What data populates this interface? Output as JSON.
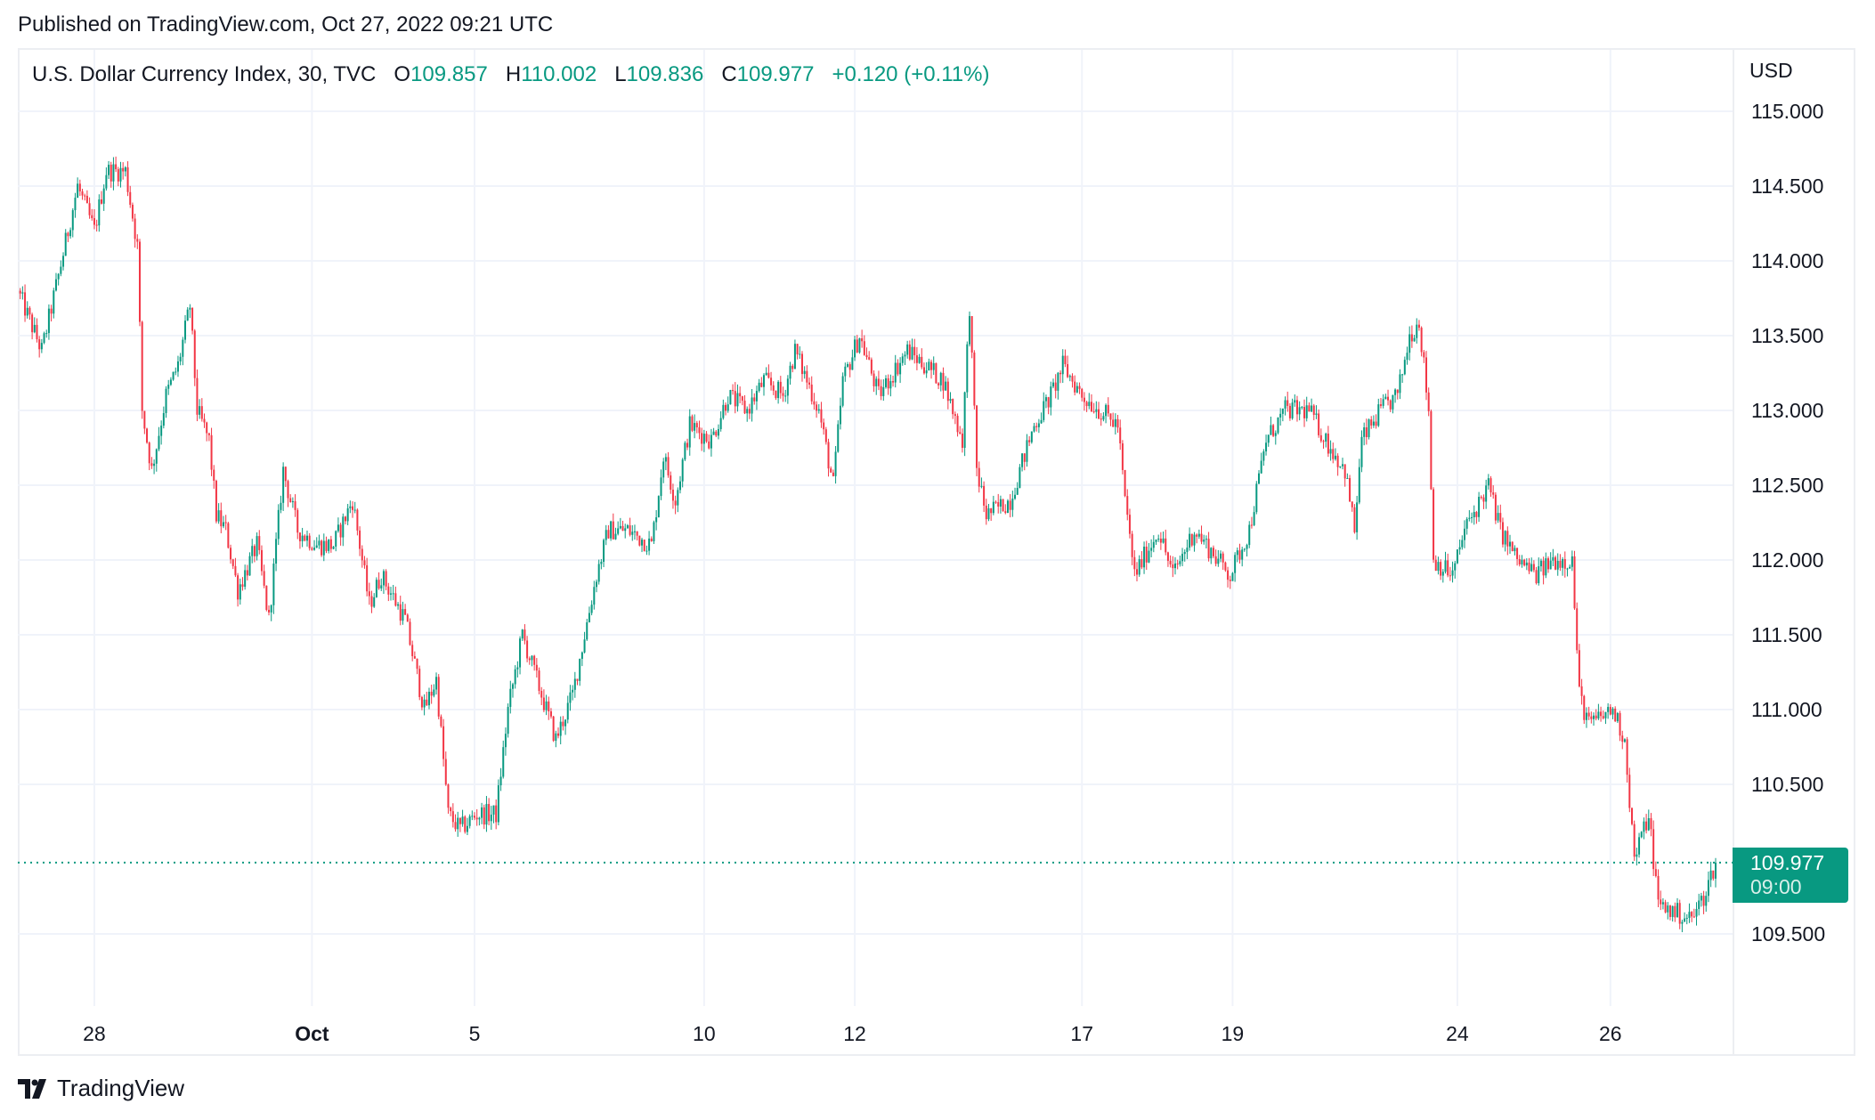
{
  "published": "Published on TradingView.com, Oct 27, 2022 09:21 UTC",
  "legend": {
    "symbol": "U.S. Dollar Currency Index, 30, TVC",
    "o_label": "O",
    "o": "109.857",
    "h_label": "H",
    "h": "110.002",
    "l_label": "L",
    "l": "109.836",
    "c_label": "C",
    "c": "109.977",
    "change": "+0.120 (+0.11%)"
  },
  "currency": "USD",
  "last_price": {
    "value": "109.977",
    "time": "09:00"
  },
  "brand": "TradingView",
  "colors": {
    "up": "#089981",
    "down": "#F23645",
    "grid": "#f0f3fa"
  },
  "chart_data": {
    "type": "candlestick",
    "title": "U.S. Dollar Currency Index, 30, TVC",
    "ylabel": "USD",
    "ylim": [
      108.8,
      115.2
    ],
    "yticks": [
      "115.000",
      "114.500",
      "114.000",
      "113.500",
      "113.000",
      "112.500",
      "112.000",
      "111.500",
      "111.000",
      "110.500",
      "109.500"
    ],
    "xticks": [
      {
        "label": "28",
        "bar": 32,
        "bold": false
      },
      {
        "label": "Oct",
        "bar": 123,
        "bold": true
      },
      {
        "label": "5",
        "bar": 191,
        "bold": false
      },
      {
        "label": "10",
        "bar": 287,
        "bold": false
      },
      {
        "label": "12",
        "bar": 350,
        "bold": false
      },
      {
        "label": "17",
        "bar": 445,
        "bold": false
      },
      {
        "label": "19",
        "bar": 508,
        "bold": false
      },
      {
        "label": "24",
        "bar": 602,
        "bold": false
      },
      {
        "label": "26",
        "bar": 666,
        "bold": false
      }
    ],
    "bars": 710,
    "approx_close_path": [
      [
        0,
        113.8
      ],
      [
        10,
        113.4
      ],
      [
        17,
        113.9
      ],
      [
        25,
        114.5
      ],
      [
        32,
        114.2
      ],
      [
        37,
        114.6
      ],
      [
        45,
        114.6
      ],
      [
        50,
        114.1
      ],
      [
        52,
        113.0
      ],
      [
        56,
        112.6
      ],
      [
        62,
        113.1
      ],
      [
        67,
        113.3
      ],
      [
        72,
        113.7
      ],
      [
        75,
        113.0
      ],
      [
        80,
        112.8
      ],
      [
        83,
        112.3
      ],
      [
        87,
        112.2
      ],
      [
        92,
        111.8
      ],
      [
        100,
        112.1
      ],
      [
        105,
        111.6
      ],
      [
        111,
        112.6
      ],
      [
        117,
        112.2
      ],
      [
        125,
        112.1
      ],
      [
        132,
        112.1
      ],
      [
        140,
        112.4
      ],
      [
        147,
        111.7
      ],
      [
        152,
        111.9
      ],
      [
        162,
        111.6
      ],
      [
        170,
        111.0
      ],
      [
        175,
        111.2
      ],
      [
        180,
        110.3
      ],
      [
        185,
        110.2
      ],
      [
        192,
        110.3
      ],
      [
        200,
        110.3
      ],
      [
        205,
        111.0
      ],
      [
        211,
        111.5
      ],
      [
        217,
        111.2
      ],
      [
        225,
        110.8
      ],
      [
        232,
        111.1
      ],
      [
        242,
        111.9
      ],
      [
        247,
        112.2
      ],
      [
        255,
        112.2
      ],
      [
        265,
        112.1
      ],
      [
        270,
        112.7
      ],
      [
        275,
        112.4
      ],
      [
        281,
        112.9
      ],
      [
        290,
        112.8
      ],
      [
        297,
        113.1
      ],
      [
        305,
        113.0
      ],
      [
        312,
        113.2
      ],
      [
        320,
        113.1
      ],
      [
        325,
        113.4
      ],
      [
        335,
        113.0
      ],
      [
        341,
        112.5
      ],
      [
        345,
        113.2
      ],
      [
        352,
        113.5
      ],
      [
        360,
        113.1
      ],
      [
        372,
        113.4
      ],
      [
        387,
        113.2
      ],
      [
        395,
        112.8
      ],
      [
        398,
        113.7
      ],
      [
        401,
        112.6
      ],
      [
        405,
        112.3
      ],
      [
        415,
        112.4
      ],
      [
        425,
        112.9
      ],
      [
        432,
        113.1
      ],
      [
        437,
        113.3
      ],
      [
        445,
        113.1
      ],
      [
        460,
        112.9
      ],
      [
        463,
        112.4
      ],
      [
        467,
        111.9
      ],
      [
        477,
        112.2
      ],
      [
        483,
        111.9
      ],
      [
        492,
        112.2
      ],
      [
        497,
        112.1
      ],
      [
        507,
        111.9
      ],
      [
        515,
        112.2
      ],
      [
        522,
        112.8
      ],
      [
        530,
        113.0
      ],
      [
        540,
        113.0
      ],
      [
        547,
        112.8
      ],
      [
        555,
        112.6
      ],
      [
        559,
        112.2
      ],
      [
        562,
        112.8
      ],
      [
        570,
        113.0
      ],
      [
        577,
        113.1
      ],
      [
        582,
        113.5
      ],
      [
        586,
        113.6
      ],
      [
        590,
        113.0
      ],
      [
        592,
        112.0
      ],
      [
        600,
        111.9
      ],
      [
        605,
        112.2
      ],
      [
        615,
        112.5
      ],
      [
        620,
        112.2
      ],
      [
        627,
        112.0
      ],
      [
        635,
        111.9
      ],
      [
        642,
        112.0
      ],
      [
        650,
        112.0
      ],
      [
        653,
        111.1
      ],
      [
        657,
        110.9
      ],
      [
        667,
        111.0
      ],
      [
        672,
        110.8
      ],
      [
        676,
        110.0
      ],
      [
        682,
        110.3
      ],
      [
        686,
        109.7
      ],
      [
        692,
        109.65
      ],
      [
        700,
        109.6
      ],
      [
        705,
        109.75
      ],
      [
        710,
        109.977
      ]
    ]
  }
}
